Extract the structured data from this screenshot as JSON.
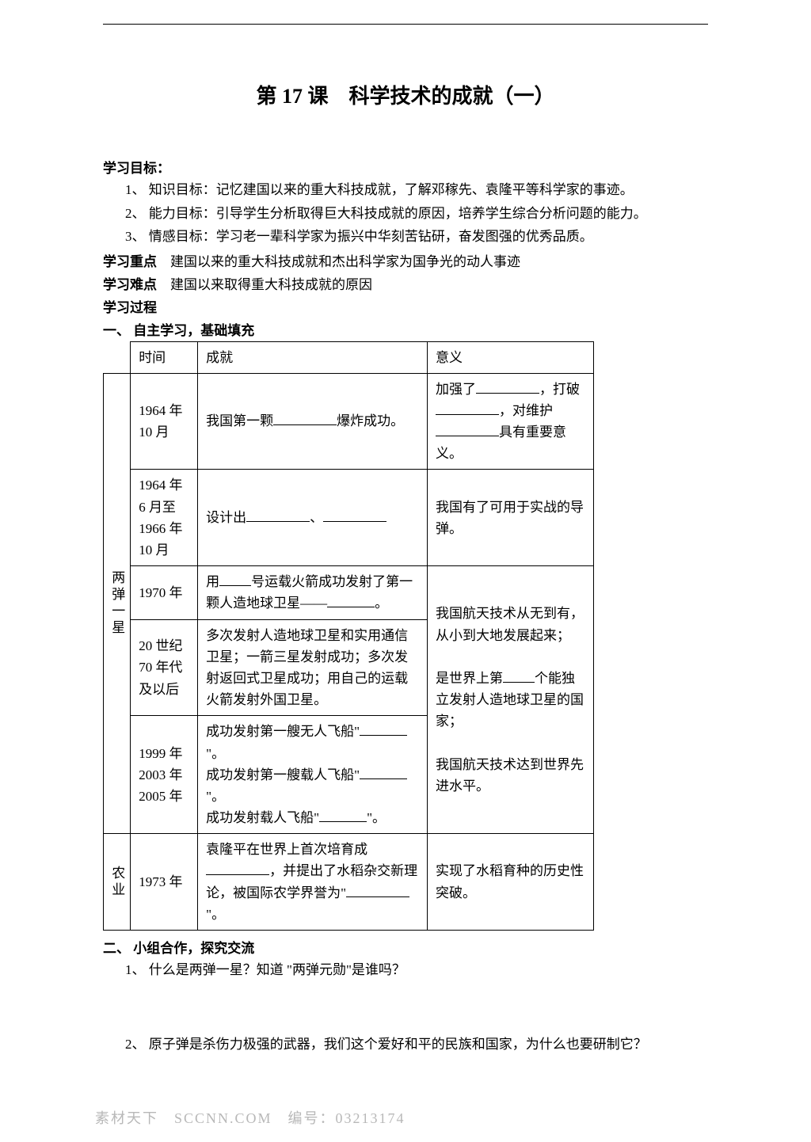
{
  "title": "第 17 课　科学技术的成就（一）",
  "sections": {
    "goal_heading": "学习目标：",
    "goal_1": "1、 知识目标：记忆建国以来的重大科技成就，了解邓稼先、袁隆平等科学家的事迹。",
    "goal_2": "2、 能力目标：引导学生分析取得巨大科技成就的原因，培养学生综合分析问题的能力。",
    "goal_3": "3、 情感目标：学习老一辈科学家为振兴中华刻苦钻研，奋发图强的优秀品质。",
    "focus_label": "学习重点",
    "focus_text": "　建国以来的重大科技成就和杰出科学家为国争光的动人事迹",
    "difficulty_label": "学习难点",
    "difficulty_text": "　建国以来取得重大科技成就的原因",
    "process_label": "学习过程",
    "part1_heading": "一、 自主学习，基础填充",
    "part2_heading": "二、 小组合作，探究交流",
    "q1": "1、 什么是两弹一星？知道 \"两弹元勋\"是谁吗？",
    "q2": "2、 原子弹是杀伤力极强的武器，我们这个爱好和平的民族和国家，为什么也要研制它？"
  },
  "table": {
    "headers": {
      "time": "时间",
      "achievement": "成就",
      "meaning": "意义"
    },
    "cat1": "两弹一星",
    "cat2": "农业",
    "r1_time": "1964 年 10 月",
    "r1_ach_a": "我国第一颗",
    "r1_ach_b": "爆炸成功。",
    "r1_mean_a": "加强了",
    "r1_mean_b": "，打破",
    "r1_mean_c": "，对维护",
    "r1_mean_d": "具有重要意义。",
    "r2_time": "1964 年 6 月至 1966 年 10 月",
    "r2_ach_a": "设计出",
    "r2_ach_b": "、",
    "r2_mean": "我国有了可用于实战的导弹。",
    "r3_time": "1970 年",
    "r3_ach_a": "用",
    "r3_ach_b": "号运载火箭成功发射了第一颗人造地球卫星——",
    "r3_ach_c": "。",
    "r4_time": "20 世纪 70 年代及以后",
    "r4_ach": "多次发射人造地球卫星和实用通信卫星；一箭三星发射成功；多次发射返回式卫星成功；用自己的运载火箭发射外国卫星。",
    "r5_time": "1999 年 2003 年 2005 年",
    "r5_ach_a": "成功发射第一艘无人飞船\"",
    "r5_ach_b": "\"。",
    "r5_ach_c": "成功发射第一艘载人飞船\"",
    "r5_ach_d": "\"。",
    "r5_ach_e": "成功发射载人飞船\"",
    "r5_ach_f": "\"。",
    "r345_mean_a": "我国航天技术从无到有，从小到大地发展起来；",
    "r345_mean_b": "是世界上第",
    "r345_mean_c": "个能独立发射人造地球卫星的国家；",
    "r345_mean_d": "我国航天技术达到世界先进水平。",
    "r6_time": "1973 年",
    "r6_ach_a": "袁隆平在世界上首次培育成",
    "r6_ach_b": "，并提出了水稻杂交新理论，被国际农学界誉为\"",
    "r6_ach_c": "\"。",
    "r6_mean": "实现了水稻育种的历史性突破。"
  },
  "watermark": "素材天下　SCCNN.COM　编号：03213174",
  "colors": {
    "text": "#000000",
    "watermark": "#b8b8b8",
    "background": "#ffffff"
  }
}
